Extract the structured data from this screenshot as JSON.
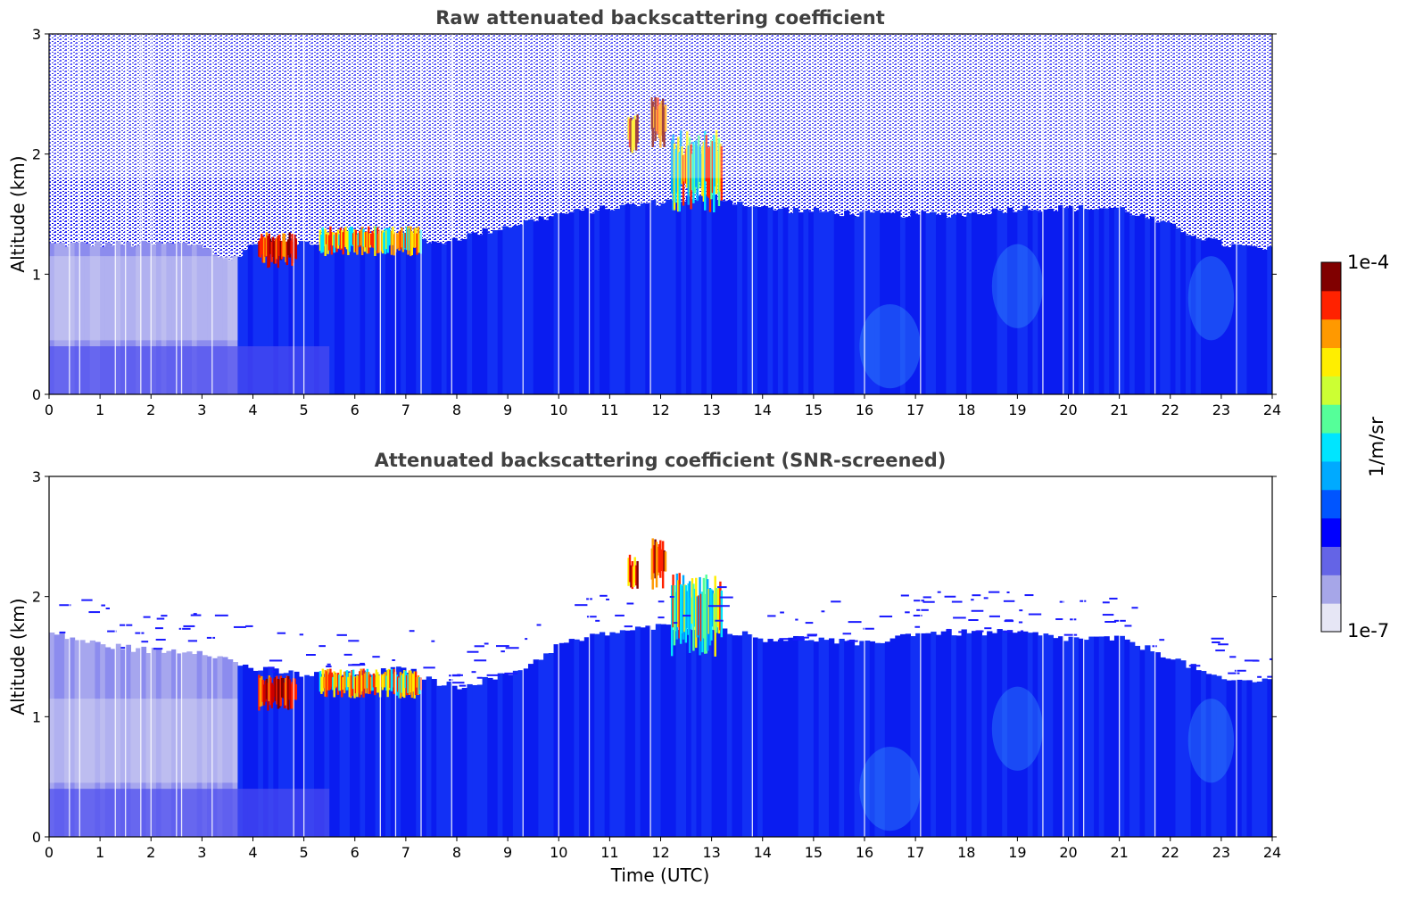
{
  "chart_data": [
    {
      "type": "heatmap",
      "title": "Raw attenuated backscattering coefficient",
      "xlabel": "",
      "ylabel": "Altitude (km)",
      "xlim": [
        0,
        24
      ],
      "ylim": [
        0,
        3
      ],
      "xticks": [
        "0",
        "1",
        "2",
        "3",
        "4",
        "5",
        "6",
        "7",
        "8",
        "9",
        "10",
        "11",
        "12",
        "13",
        "14",
        "15",
        "16",
        "17",
        "18",
        "19",
        "20",
        "21",
        "22",
        "23",
        "24"
      ],
      "yticks": [
        "0",
        "1",
        "2",
        "3"
      ],
      "features": [
        {
          "label": "boundary layer aerosol",
          "x": [
            0,
            24
          ],
          "y": [
            0,
            1.4
          ]
        },
        {
          "label": "cloud",
          "x": [
            4.1,
            4.8
          ],
          "y": [
            1.05,
            1.35
          ],
          "level": "max"
        },
        {
          "label": "cloud",
          "x": [
            5.3,
            7.3
          ],
          "y": [
            1.15,
            1.4
          ],
          "level": "high"
        },
        {
          "label": "cloud",
          "x": [
            11.3,
            13.3
          ],
          "y": [
            1.6,
            2.5
          ],
          "level": "max"
        }
      ],
      "data_gaps_utc": [
        0.4,
        0.6,
        1.3,
        1.5,
        1.8,
        2.0,
        2.5,
        2.6,
        3.2,
        4.8,
        5.0,
        6.5,
        6.8,
        7.3,
        7.9,
        9.3,
        10.0,
        10.6,
        11.8,
        13.8,
        16.0,
        17.1,
        19.5,
        19.9,
        20.1,
        20.3,
        21.0,
        21.7,
        23.3
      ]
    },
    {
      "type": "heatmap",
      "title": "Attenuated backscattering coefficient (SNR-screened)",
      "xlabel": "Time (UTC)",
      "ylabel": "Altitude (km)",
      "xlim": [
        0,
        24
      ],
      "ylim": [
        0,
        3
      ],
      "xticks": [
        "0",
        "1",
        "2",
        "3",
        "4",
        "5",
        "6",
        "7",
        "8",
        "9",
        "10",
        "11",
        "12",
        "13",
        "14",
        "15",
        "16",
        "17",
        "18",
        "19",
        "20",
        "21",
        "22",
        "23",
        "24"
      ],
      "yticks": [
        "0",
        "1",
        "2",
        "3"
      ],
      "screened_top_km": [
        [
          0,
          1.7
        ],
        [
          1,
          1.6
        ],
        [
          2,
          1.55
        ],
        [
          3,
          1.55
        ],
        [
          4,
          1.4
        ],
        [
          5,
          1.35
        ],
        [
          6,
          1.35
        ],
        [
          7,
          1.4
        ],
        [
          7.5,
          1.3
        ],
        [
          8,
          1.25
        ],
        [
          9,
          1.35
        ],
        [
          9.5,
          1.45
        ],
        [
          10,
          1.6
        ],
        [
          10.5,
          1.65
        ],
        [
          11,
          1.7
        ],
        [
          12,
          1.75
        ],
        [
          13,
          1.75
        ],
        [
          14,
          1.65
        ],
        [
          15,
          1.65
        ],
        [
          16,
          1.6
        ],
        [
          17,
          1.7
        ],
        [
          18,
          1.7
        ],
        [
          19,
          1.7
        ],
        [
          20,
          1.65
        ],
        [
          21,
          1.65
        ],
        [
          22,
          1.5
        ],
        [
          23,
          1.3
        ],
        [
          24,
          1.3
        ]
      ],
      "data_gaps_utc": [
        0.4,
        0.6,
        1.3,
        1.5,
        1.8,
        2.0,
        2.5,
        2.6,
        3.2,
        4.8,
        5.0,
        6.5,
        6.8,
        7.3,
        7.9,
        9.3,
        10.0,
        10.6,
        11.8,
        13.8,
        16.0,
        17.1,
        19.5,
        19.9,
        20.1,
        20.3,
        21.0,
        21.7,
        23.3
      ]
    }
  ],
  "colorbar": {
    "label": "1/m/sr",
    "max_label": "1e-4",
    "min_label": "1e-7",
    "scale": "log",
    "colors": [
      "#e6e6f5",
      "#a6a6e8",
      "#6464e6",
      "#0000ff",
      "#0055ff",
      "#00aaff",
      "#00e5ff",
      "#55ff99",
      "#ccff33",
      "#ffee00",
      "#ff9900",
      "#ff2200",
      "#800000"
    ]
  }
}
